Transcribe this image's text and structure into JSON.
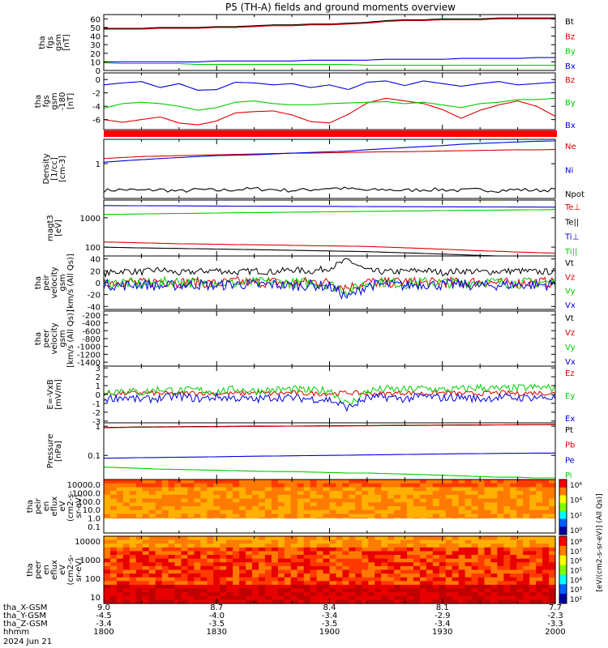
{
  "title": "P5 (TH-A) fields and ground moments overview",
  "colors": {
    "black": "#000000",
    "red": "#e00000",
    "green": "#00cc00",
    "blue": "#0000dd"
  },
  "chart_data": [
    {
      "type": "line",
      "ylabel": [
        "tha",
        "fgs",
        "gsm",
        "[nT]"
      ],
      "yticks": [
        0,
        10,
        20,
        30,
        40,
        50,
        60
      ],
      "ylim": [
        0,
        65
      ],
      "legend": [
        "Bt",
        "Bz",
        "By",
        "Bx"
      ],
      "series": [
        {
          "name": "Bt",
          "color": "black",
          "values": [
            49,
            49,
            49,
            50,
            50,
            50,
            51,
            51,
            52,
            53,
            53,
            54,
            54,
            55,
            56,
            58,
            59,
            59,
            60,
            60,
            60,
            61,
            61,
            61,
            61
          ]
        },
        {
          "name": "Bz",
          "color": "red",
          "values": [
            48,
            48,
            48,
            49,
            49,
            49,
            50,
            50,
            51,
            52,
            52,
            53,
            53,
            54,
            55,
            57,
            58,
            58,
            59,
            59,
            59,
            60,
            60,
            60,
            60
          ]
        },
        {
          "name": "By",
          "color": "green",
          "values": [
            9,
            8,
            8,
            8,
            8,
            7,
            7,
            7,
            7,
            7,
            7,
            7,
            7,
            7,
            6,
            6,
            6,
            6,
            6,
            6,
            6,
            6,
            6,
            6,
            6
          ]
        },
        {
          "name": "Bx",
          "color": "blue",
          "values": [
            10,
            10,
            10,
            10,
            10,
            10,
            11,
            11,
            11,
            11,
            11,
            12,
            12,
            12,
            12,
            13,
            13,
            13,
            13,
            14,
            14,
            14,
            14,
            15,
            15
          ]
        }
      ]
    },
    {
      "type": "line",
      "ylabel": [
        "tha",
        "fgs",
        "gsm",
        "-180",
        "[nT]"
      ],
      "yticks": [
        -6,
        -4,
        -2,
        0
      ],
      "ylim": [
        -7.5,
        1.0
      ],
      "legend": [
        "Bz",
        "By",
        "Bx"
      ],
      "series": [
        {
          "name": "Bz",
          "color": "red",
          "values": [
            -6.0,
            -6.4,
            -6.0,
            -5.6,
            -6.5,
            -6.8,
            -6.2,
            -5.0,
            -4.8,
            -4.7,
            -5.3,
            -6.3,
            -6.5,
            -5.2,
            -3.5,
            -2.8,
            -3.2,
            -3.6,
            -4.5,
            -5.8,
            -4.6,
            -3.8,
            -3.2,
            -4.0,
            -5.5
          ]
        },
        {
          "name": "By",
          "color": "green",
          "values": [
            -4.3,
            -3.6,
            -3.4,
            -3.6,
            -4.0,
            -4.6,
            -4.2,
            -3.4,
            -3.2,
            -3.6,
            -3.8,
            -3.8,
            -3.6,
            -3.5,
            -3.4,
            -3.3,
            -3.6,
            -3.4,
            -3.8,
            -4.2,
            -3.6,
            -3.4,
            -3.0,
            -3.0,
            -2.8
          ]
        },
        {
          "name": "Bx",
          "color": "blue",
          "values": [
            -0.8,
            -0.5,
            -0.3,
            -1.2,
            -0.6,
            -1.6,
            -1.5,
            -0.4,
            -0.5,
            -0.8,
            -0.6,
            -1.2,
            -0.8,
            -1.5,
            -0.4,
            -0.2,
            -0.9,
            -0.2,
            -0.6,
            -1.0,
            -0.6,
            -0.3,
            -0.8,
            -0.6,
            -0.4
          ]
        }
      ]
    },
    {
      "type": "line",
      "log": true,
      "ylabel": [
        "Density",
        "[1/cc]",
        "[cm-3]"
      ],
      "yticks": [
        1
      ],
      "ylim": [
        0.1,
        5
      ],
      "legend": [
        "Ne",
        "Ni",
        "Npot"
      ],
      "series": [
        {
          "name": "Ne",
          "color": "red",
          "values": [
            1.4,
            1.5,
            1.6,
            1.65,
            1.7,
            1.75,
            1.8,
            1.85,
            1.9,
            1.95,
            2.0,
            2.0,
            2.05,
            2.1,
            2.15,
            2.2,
            2.2,
            2.25,
            2.3,
            2.35,
            2.4,
            2.45,
            2.5,
            2.5,
            2.55
          ]
        },
        {
          "name": "Ni",
          "color": "blue",
          "values": [
            1.1,
            1.2,
            1.3,
            1.4,
            1.5,
            1.6,
            1.7,
            1.75,
            1.8,
            1.9,
            2.0,
            2.1,
            2.2,
            2.3,
            2.5,
            2.7,
            2.9,
            3.1,
            3.3,
            3.6,
            3.8,
            4.0,
            4.2,
            4.4,
            4.5
          ]
        },
        {
          "name": "Npot",
          "color": "black",
          "values": [
            0.17,
            0.18,
            0.17,
            0.18,
            0.16,
            0.18,
            0.17,
            0.18,
            0.19,
            0.18,
            0.17,
            0.18,
            0.2,
            0.19,
            0.17,
            0.18,
            0.17,
            0.18,
            0.18,
            0.17,
            0.18,
            0.17,
            0.18,
            0.17,
            0.18
          ]
        }
      ]
    },
    {
      "type": "line",
      "log": true,
      "ylabel": [
        "magt3",
        "[eV]"
      ],
      "yticks": [
        100,
        1000
      ],
      "ylim": [
        50,
        4000
      ],
      "legend": [
        "Te⊥",
        "Te||",
        "Ti⊥",
        "Ti||"
      ],
      "series": [
        {
          "name": "Te⊥",
          "color": "red",
          "values": [
            150,
            145,
            140,
            135,
            130,
            128,
            125,
            122,
            120,
            118,
            115,
            112,
            110,
            108,
            105,
            100,
            95,
            90,
            85,
            80,
            75,
            72,
            68,
            65,
            62
          ]
        },
        {
          "name": "Te||",
          "color": "black",
          "values": [
            100,
            97,
            94,
            92,
            90,
            88,
            86,
            84,
            82,
            80,
            78,
            76,
            74,
            72,
            70,
            67,
            64,
            61,
            58,
            55,
            52,
            50,
            48,
            46,
            44
          ]
        },
        {
          "name": "Ti⊥",
          "color": "blue",
          "values": [
            2600,
            2580,
            2560,
            2550,
            2540,
            2520,
            2500,
            2490,
            2480,
            2470,
            2460,
            2450,
            2440,
            2420,
            2400,
            2390,
            2380,
            2370,
            2360,
            2350,
            2340,
            2330,
            2320,
            2310,
            2300
          ]
        },
        {
          "name": "Ti||",
          "color": "green",
          "values": [
            1300,
            1320,
            1350,
            1380,
            1400,
            1420,
            1450,
            1480,
            1500,
            1520,
            1550,
            1570,
            1600,
            1620,
            1650,
            1670,
            1700,
            1720,
            1750,
            1780,
            1800,
            1820,
            1850,
            1870,
            1900
          ]
        }
      ]
    },
    {
      "type": "line",
      "ylabel": [
        "tha",
        "peir",
        "velocity",
        "gsm",
        "[km/s (All Qs)]"
      ],
      "yticks": [
        -40,
        -20,
        0,
        20,
        40
      ],
      "ylim": [
        -45,
        45
      ],
      "legend": [
        "Vt",
        "Vz",
        "Vy",
        "Vx"
      ],
      "series": [
        {
          "name": "Vt",
          "color": "black",
          "values": [
            15,
            20,
            18,
            22,
            16,
            19,
            21,
            17,
            20,
            18,
            22,
            19,
            25,
            38,
            20,
            18,
            19,
            21,
            17,
            20,
            18,
            19,
            20,
            18,
            19
          ]
        },
        {
          "name": "Vz",
          "color": "red",
          "values": [
            0,
            2,
            -1,
            3,
            0,
            1,
            -2,
            2,
            0,
            1,
            -1,
            2,
            0,
            -8,
            1,
            0,
            2,
            -1,
            1,
            0,
            2,
            -1,
            0,
            1,
            0
          ]
        },
        {
          "name": "Vy",
          "color": "green",
          "values": [
            -2,
            1,
            -3,
            0,
            2,
            -1,
            1,
            -2,
            0,
            2,
            -1,
            0,
            -3,
            -15,
            0,
            1,
            -2,
            1,
            0,
            -1,
            2,
            0,
            -1,
            1,
            0
          ]
        },
        {
          "name": "Vx",
          "color": "blue",
          "values": [
            -3,
            -5,
            -2,
            -6,
            -4,
            -3,
            -5,
            -2,
            -4,
            -3,
            -5,
            -4,
            -6,
            -25,
            -4,
            -3,
            -5,
            -2,
            -4,
            -3,
            -5,
            -4,
            -3,
            -4,
            -3
          ]
        }
      ]
    },
    {
      "type": "line",
      "empty": true,
      "ylabel": [
        "tha",
        "peer",
        "velocity",
        "gsm",
        "[km/s (All Qs)]"
      ],
      "yticks": [
        -1400,
        -1200,
        -1000,
        -800,
        -600,
        -400,
        -200
      ],
      "ylim": [
        -1500,
        -100
      ],
      "legend": [
        "Vt",
        "Vz",
        "Vy",
        "Vx"
      ],
      "series": []
    },
    {
      "type": "line",
      "ylabel": [
        "E=-VxB",
        "[mV/m]"
      ],
      "yticks": [
        -3,
        -2,
        -1,
        0,
        1,
        2,
        3
      ],
      "ylim": [
        -3.2,
        3.2
      ],
      "legend": [
        "Ez",
        "Ey",
        "Ex"
      ],
      "series": [
        {
          "name": "Ez",
          "color": "red",
          "values": [
            0.1,
            0.1,
            0.2,
            0.1,
            0.1,
            0.2,
            0.1,
            0.1,
            0.2,
            0.1,
            0.2,
            0.1,
            0.1,
            0.2,
            0.1,
            0.1,
            0.2,
            0.1,
            0.2,
            0.1,
            0.1,
            0.2,
            0.1,
            0.2,
            0.1
          ]
        },
        {
          "name": "Ey",
          "color": "green",
          "values": [
            0.3,
            0.5,
            0.2,
            0.6,
            0.4,
            0.5,
            0.3,
            0.6,
            0.4,
            0.5,
            0.6,
            0.4,
            0.5,
            -1.2,
            0.4,
            0.6,
            0.5,
            0.7,
            0.5,
            0.6,
            0.8,
            0.6,
            0.7,
            0.8,
            0.7
          ]
        },
        {
          "name": "Ex",
          "color": "blue",
          "values": [
            -0.5,
            -0.3,
            -0.6,
            -0.4,
            -0.2,
            -0.5,
            -0.3,
            -0.4,
            -0.6,
            -0.3,
            -0.4,
            -0.5,
            -0.6,
            -1.5,
            -0.4,
            -0.3,
            -0.5,
            -0.2,
            -0.4,
            -0.3,
            -0.5,
            -0.3,
            -0.4,
            -0.3,
            -0.4
          ]
        }
      ]
    },
    {
      "type": "line",
      "log": true,
      "ylabel": [
        "Pressure",
        "[nPa]"
      ],
      "yticks": [
        0.1,
        1.0
      ],
      "ylim": [
        0.015,
        1.3
      ],
      "legend": [
        "Pt",
        "Pb",
        "Pe",
        "Pi"
      ],
      "series": [
        {
          "name": "Pt",
          "color": "black",
          "values": [
            0.9,
            0.92,
            0.94,
            0.95,
            0.96,
            0.97,
            0.98,
            0.99,
            1.0,
            1.0,
            1.01,
            1.02,
            1.03,
            1.04,
            1.05,
            1.06,
            1.07,
            1.08,
            1.09,
            1.1,
            1.1,
            1.11,
            1.12,
            1.12,
            1.13
          ]
        },
        {
          "name": "Pb",
          "color": "red",
          "values": [
            0.88,
            0.9,
            0.92,
            0.93,
            0.94,
            0.95,
            0.96,
            0.97,
            0.98,
            0.99,
            1.0,
            1.0,
            1.01,
            1.02,
            1.03,
            1.04,
            1.05,
            1.06,
            1.07,
            1.08,
            1.09,
            1.1,
            1.1,
            1.11,
            1.12
          ]
        },
        {
          "name": "Pe",
          "color": "blue",
          "values": [
            0.08,
            0.082,
            0.084,
            0.085,
            0.087,
            0.088,
            0.09,
            0.092,
            0.094,
            0.095,
            0.097,
            0.099,
            0.1,
            0.102,
            0.104,
            0.106,
            0.108,
            0.11,
            0.112,
            0.114,
            0.115,
            0.117,
            0.118,
            0.12,
            0.12
          ]
        },
        {
          "name": "Pi",
          "color": "green",
          "values": [
            0.04,
            0.038,
            0.036,
            0.034,
            0.033,
            0.032,
            0.031,
            0.03,
            0.029,
            0.028,
            0.028,
            0.027,
            0.026,
            0.025,
            0.025,
            0.024,
            0.023,
            0.022,
            0.021,
            0.02,
            0.019,
            0.018,
            0.018,
            0.017,
            0.017
          ]
        }
      ]
    },
    {
      "type": "heatmap",
      "ylabel": [
        "tha",
        "peir",
        "en",
        "eflux",
        "eV",
        "(cm2-s-",
        "sr-eV)"
      ],
      "yticks": [
        "10000.0",
        "1000.0",
        "100.0",
        "10.0",
        "1.0",
        "0.1"
      ]
    },
    {
      "type": "heatmap",
      "ylabel": [
        "tha",
        "peer",
        "en",
        "eflux",
        "eV",
        "(cm2-s-",
        "sr-eV)"
      ],
      "yticks": [
        "10000",
        "1000",
        "100",
        "10"
      ]
    }
  ],
  "colorbar": {
    "upper_ticks": [
      "10⁶",
      "10⁴",
      "10²",
      "10⁰"
    ],
    "lower_ticks": [
      "10⁸",
      "10⁷",
      "10⁶",
      "10⁵",
      "10⁴",
      "10³",
      "10²"
    ],
    "label": "[eV/(cm2-s-sr-eV)] (All Qs)]"
  },
  "xaxis": {
    "rows": [
      {
        "label": "tha_X-GSM",
        "values": [
          "9.0",
          "8.7",
          "8.4",
          "8.1",
          "7.7"
        ]
      },
      {
        "label": "tha_Y-GSM",
        "values": [
          "-4.5",
          "-4.0",
          "-3.4",
          "-2.9",
          "-2.3"
        ]
      },
      {
        "label": "tha_Z-GSM",
        "values": [
          "-3.4",
          "-3.5",
          "-3.5",
          "-3.4",
          "-3.3"
        ]
      },
      {
        "label": "hhmm",
        "values": [
          "1800",
          "1830",
          "1900",
          "1930",
          "2000"
        ]
      }
    ],
    "date": "2024 Jun 21"
  }
}
